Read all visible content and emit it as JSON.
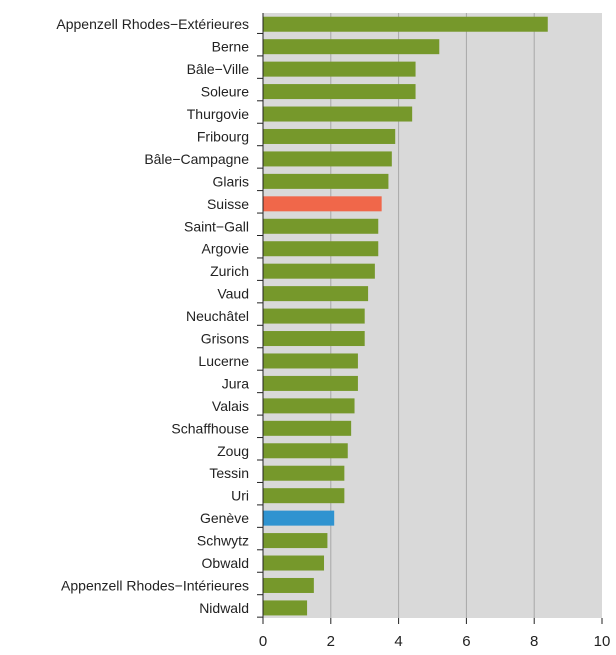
{
  "chart_data": {
    "type": "bar",
    "orientation": "horizontal",
    "categories": [
      "Appenzell Rhodes−Extérieures",
      "Berne",
      "Bâle−Ville",
      "Soleure",
      "Thurgovie",
      "Fribourg",
      "Bâle−Campagne",
      "Glaris",
      "Suisse",
      "Saint−Gall",
      "Argovie",
      "Zurich",
      "Vaud",
      "Neuchâtel",
      "Grisons",
      "Lucerne",
      "Jura",
      "Valais",
      "Schaffhouse",
      "Zoug",
      "Tessin",
      "Uri",
      "Genève",
      "Schwytz",
      "Obwald",
      "Appenzell Rhodes−Intérieures",
      "Nidwald"
    ],
    "values": [
      8.4,
      5.2,
      4.5,
      4.5,
      4.4,
      3.9,
      3.8,
      3.7,
      3.5,
      3.4,
      3.4,
      3.3,
      3.1,
      3.0,
      3.0,
      2.8,
      2.8,
      2.7,
      2.6,
      2.5,
      2.4,
      2.4,
      2.1,
      1.9,
      1.8,
      1.5,
      1.3
    ],
    "xlim": [
      0,
      10
    ],
    "xticks": [
      "0",
      "2",
      "4",
      "6",
      "8",
      "10"
    ],
    "grid": "vertical",
    "legend": "none",
    "colors": {
      "default": "#76982b",
      "highlight": {
        "Suisse": "#f0674a",
        "Genève": "#2f93d0"
      },
      "plot_background": "#d9d9d9",
      "grid": "#a8a8a8"
    }
  }
}
